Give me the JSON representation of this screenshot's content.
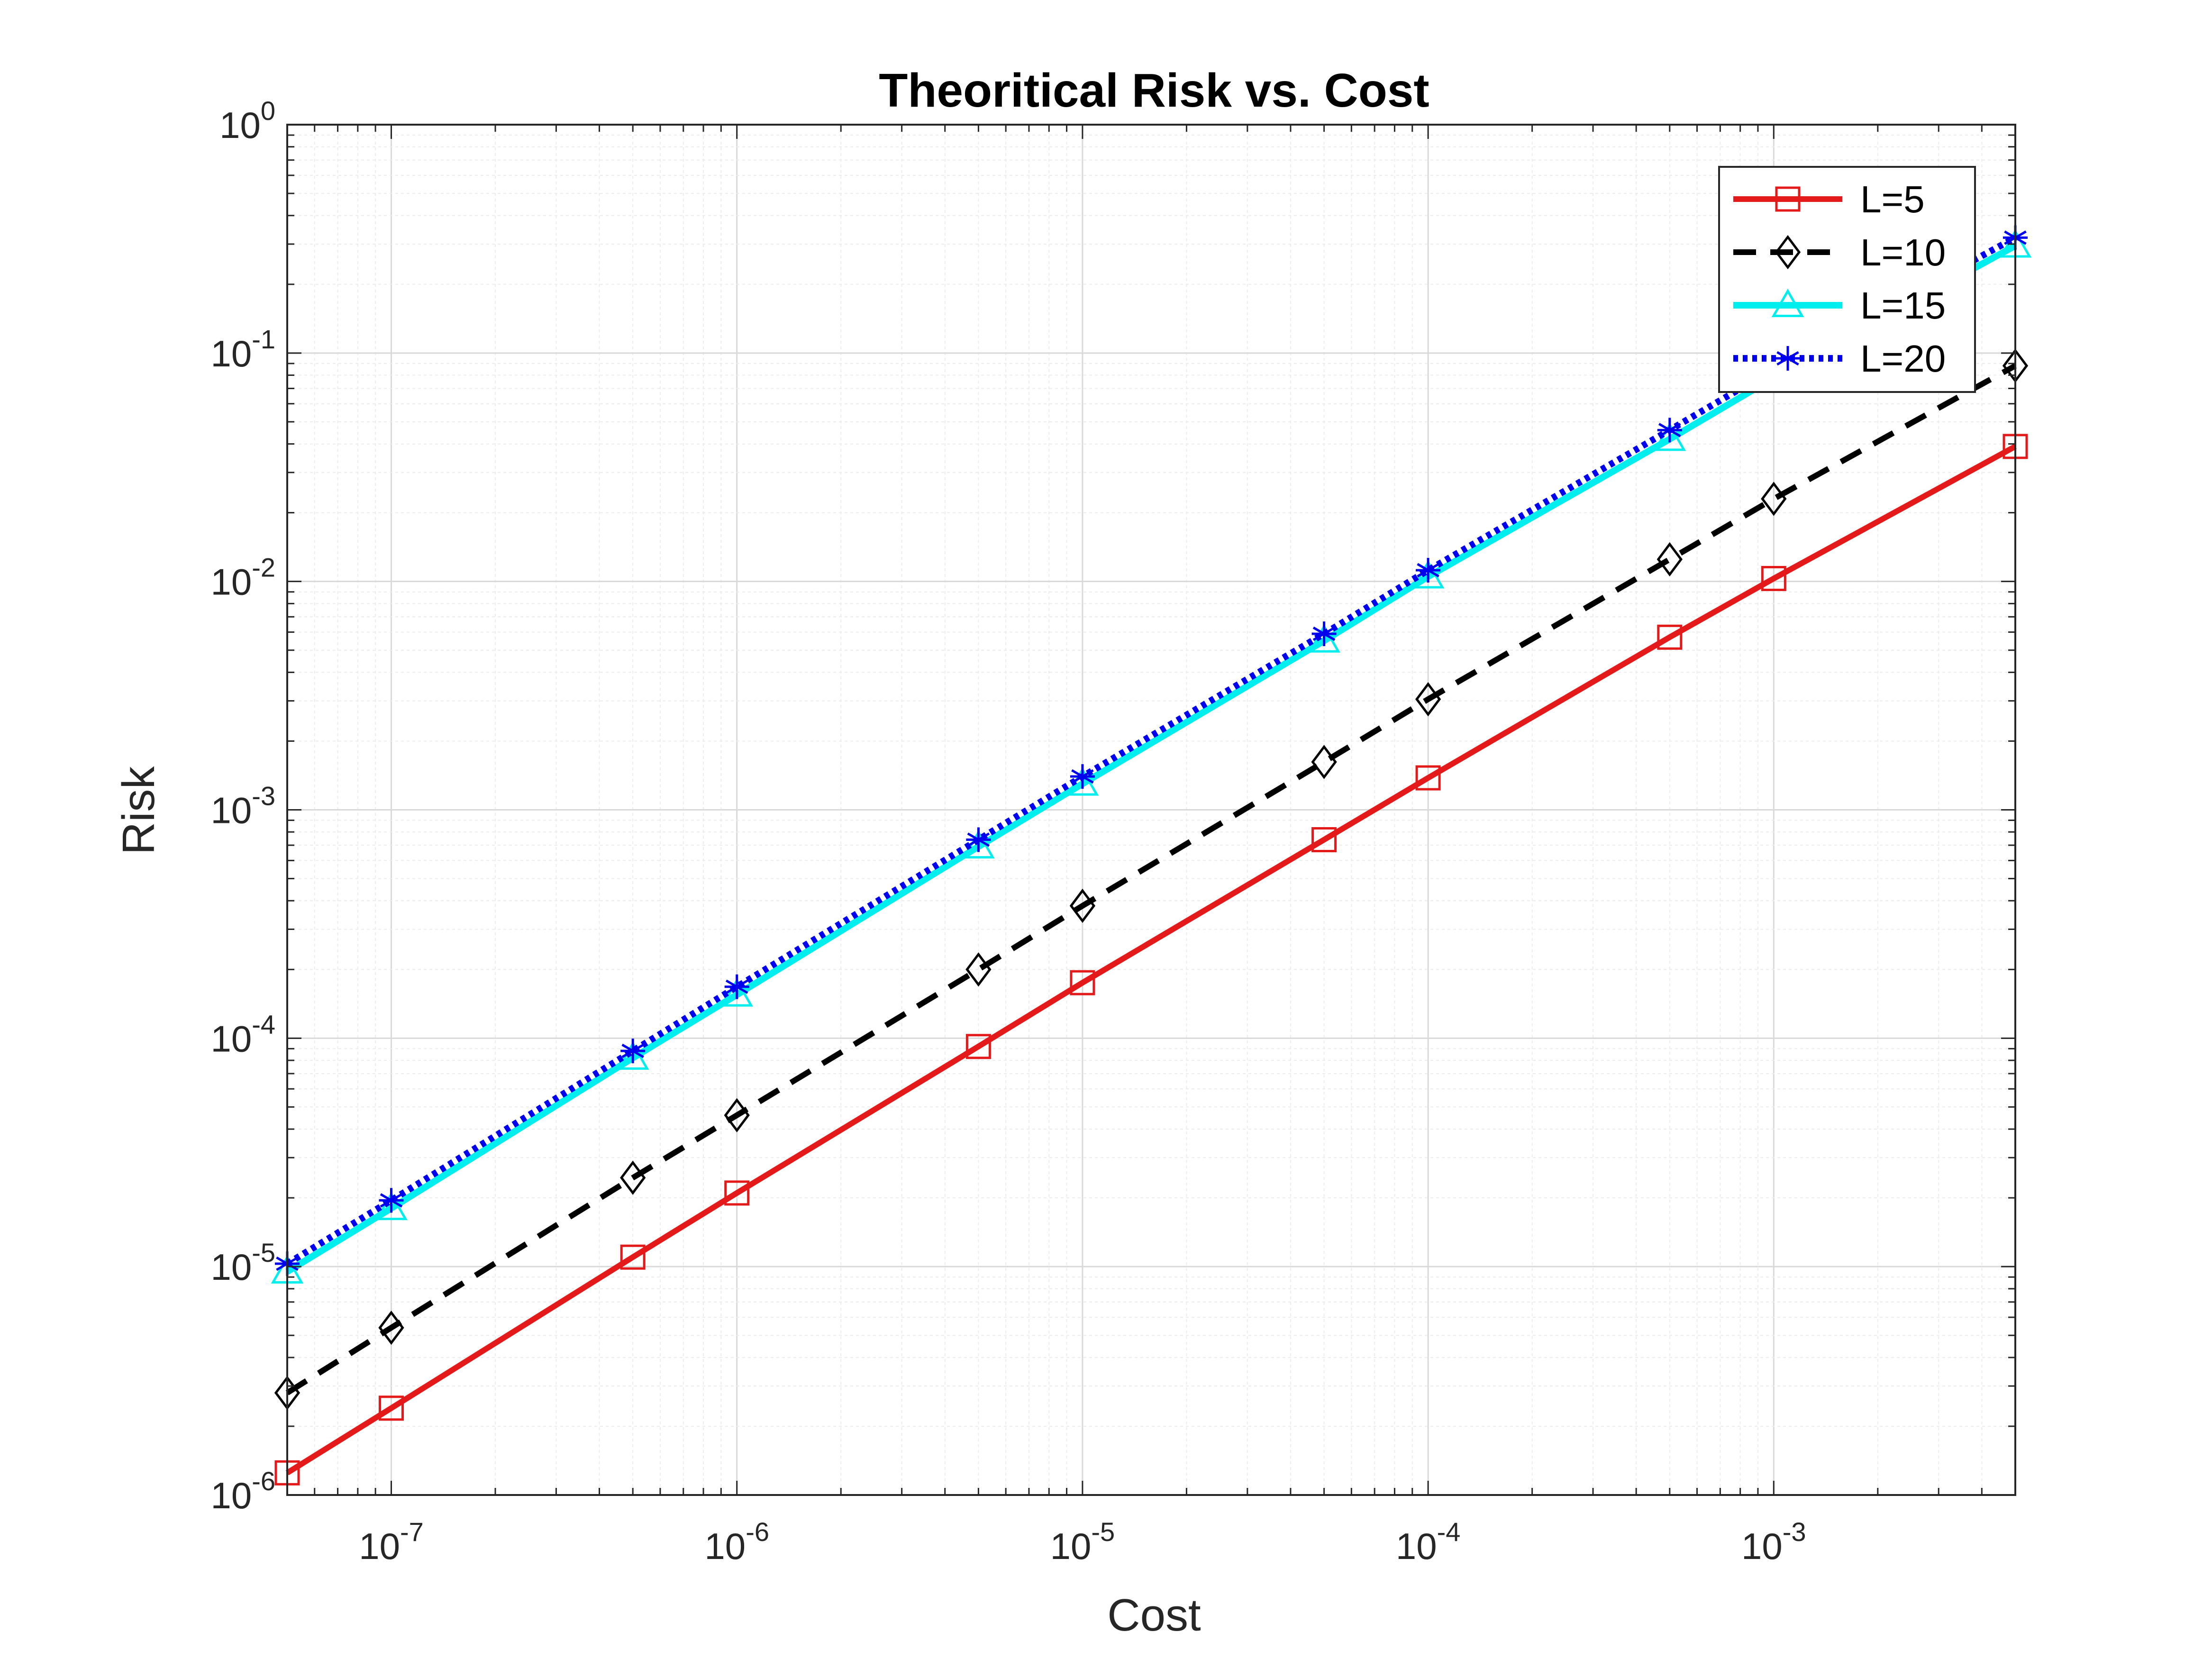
{
  "chart_data": {
    "type": "line",
    "title": "Theoritical Risk vs. Cost",
    "xlabel": "Cost",
    "ylabel": "Risk",
    "xscale": "log",
    "yscale": "log",
    "xlim": [
      5e-08,
      0.005
    ],
    "ylim": [
      1e-06,
      1
    ],
    "grid": true,
    "minor_grid": true,
    "legend_position": "top-right",
    "x_ticks": [
      {
        "base": "10",
        "exp": "-7",
        "value": 1e-07
      },
      {
        "base": "10",
        "exp": "-6",
        "value": 1e-06
      },
      {
        "base": "10",
        "exp": "-5",
        "value": 1e-05
      },
      {
        "base": "10",
        "exp": "-4",
        "value": 0.0001
      },
      {
        "base": "10",
        "exp": "-3",
        "value": 0.001
      }
    ],
    "y_ticks": [
      {
        "base": "10",
        "exp": "0",
        "value": 1
      },
      {
        "base": "10",
        "exp": "-1",
        "value": 0.1
      },
      {
        "base": "10",
        "exp": "-2",
        "value": 0.01
      },
      {
        "base": "10",
        "exp": "-3",
        "value": 0.001
      },
      {
        "base": "10",
        "exp": "-4",
        "value": 0.0001
      },
      {
        "base": "10",
        "exp": "-5",
        "value": 1e-05
      },
      {
        "base": "10",
        "exp": "-6",
        "value": 1e-06
      }
    ],
    "x": [
      5e-08,
      1e-07,
      5e-07,
      1e-06,
      5e-06,
      1e-05,
      5e-05,
      0.0001,
      0.0005,
      0.001,
      0.005
    ],
    "series": [
      {
        "name": "L=5",
        "color": "#e41a1a",
        "dash": "solid",
        "marker": "square",
        "values": [
          1.25e-06,
          2.4e-06,
          1.1e-05,
          2.1e-05,
          9.2e-05,
          0.000175,
          0.00074,
          0.00138,
          0.0057,
          0.0103,
          0.039
        ]
      },
      {
        "name": "L=10",
        "color": "#000000",
        "dash": "dashed",
        "marker": "diamond",
        "values": [
          2.8e-06,
          5.4e-06,
          2.45e-05,
          4.6e-05,
          0.0002,
          0.00038,
          0.00162,
          0.00305,
          0.0125,
          0.023,
          0.088
        ]
      },
      {
        "name": "L=15",
        "color": "#00eeee",
        "dash": "solid",
        "marker": "triangle",
        "values": [
          9.5e-06,
          1.8e-05,
          8.2e-05,
          0.000155,
          0.00069,
          0.0013,
          0.0055,
          0.0105,
          0.042,
          0.078,
          0.295
        ]
      },
      {
        "name": "L=20",
        "color": "#0000ee",
        "dash": "dotted",
        "marker": "asterisk",
        "values": [
          1.03e-05,
          1.95e-05,
          8.8e-05,
          0.000168,
          0.00074,
          0.0014,
          0.0059,
          0.0112,
          0.046,
          0.085,
          0.32
        ]
      }
    ]
  }
}
